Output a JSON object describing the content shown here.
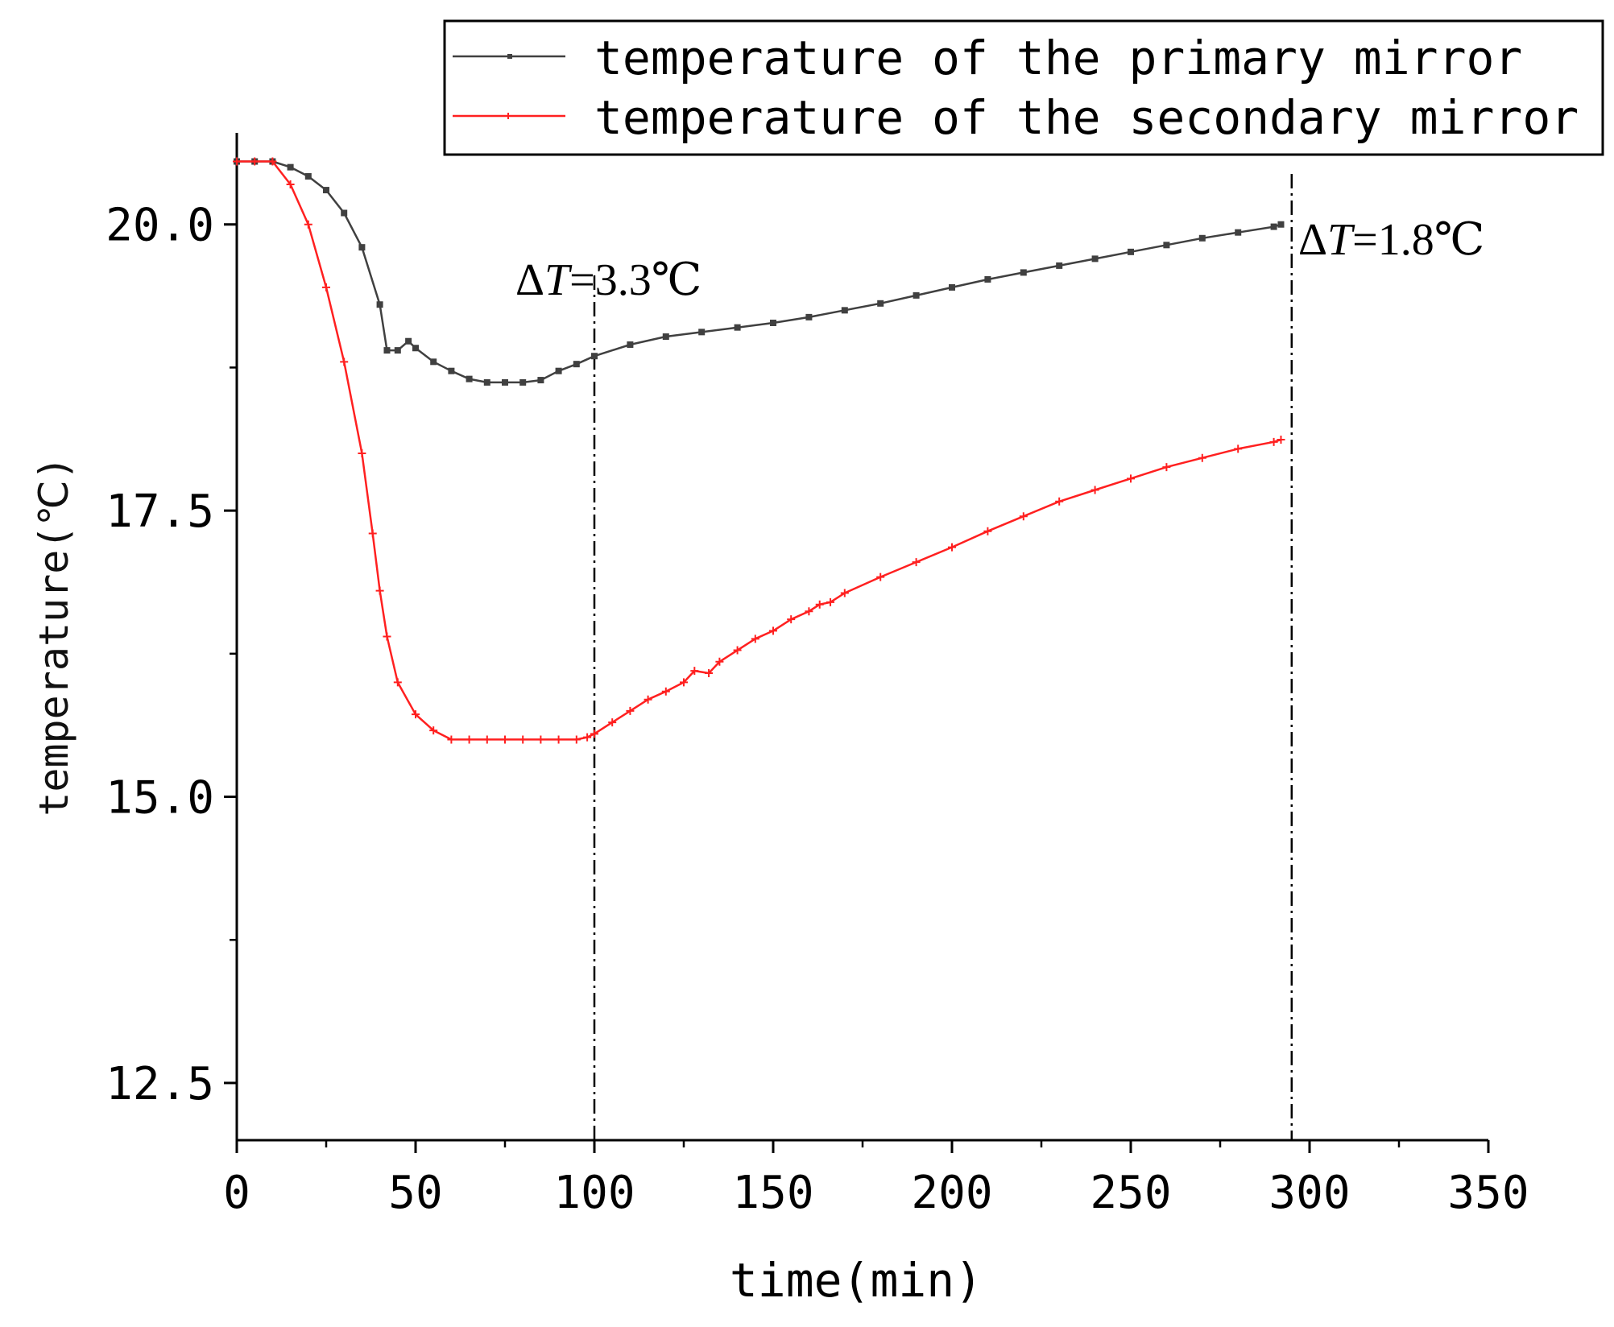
{
  "chart_data": {
    "type": "line",
    "title": "",
    "xlabel": "time(min)",
    "ylabel": "temperature(℃)",
    "xlim": [
      0,
      350
    ],
    "ylim": [
      12.0,
      20.8
    ],
    "xticks": [
      0,
      50,
      100,
      150,
      200,
      250,
      300,
      350
    ],
    "yticks": [
      12.5,
      15.0,
      17.5,
      20.0
    ],
    "xtick_labels": [
      "0",
      "50",
      "100",
      "150",
      "200",
      "250",
      "300",
      "350"
    ],
    "ytick_labels": [
      "12.5",
      "15.0",
      "17.5",
      "20.0"
    ],
    "grid": false,
    "legend_position": "top-right",
    "series": [
      {
        "name": "temperature of the primary mirror",
        "color": "#404040",
        "x": [
          0,
          5,
          10,
          15,
          20,
          25,
          30,
          35,
          40,
          42,
          45,
          48,
          50,
          55,
          60,
          65,
          70,
          75,
          80,
          85,
          90,
          95,
          100,
          110,
          120,
          130,
          140,
          150,
          160,
          170,
          180,
          190,
          200,
          210,
          220,
          230,
          240,
          250,
          260,
          270,
          280,
          290,
          292
        ],
        "y": [
          20.55,
          20.55,
          20.55,
          20.5,
          20.42,
          20.3,
          20.1,
          19.8,
          19.3,
          18.9,
          18.9,
          18.98,
          18.92,
          18.8,
          18.72,
          18.65,
          18.62,
          18.62,
          18.62,
          18.64,
          18.72,
          18.78,
          18.85,
          18.95,
          19.02,
          19.06,
          19.1,
          19.14,
          19.19,
          19.25,
          19.31,
          19.38,
          19.45,
          19.52,
          19.58,
          19.64,
          19.7,
          19.76,
          19.82,
          19.88,
          19.93,
          19.98,
          20.0
        ]
      },
      {
        "name": "temperature of the secondary mirror",
        "color": "#ff2020",
        "x": [
          0,
          5,
          10,
          15,
          20,
          25,
          30,
          35,
          38,
          40,
          42,
          45,
          50,
          55,
          60,
          65,
          70,
          75,
          80,
          85,
          90,
          95,
          98,
          100,
          105,
          110,
          115,
          120,
          125,
          128,
          132,
          135,
          140,
          145,
          150,
          155,
          160,
          163,
          166,
          170,
          180,
          190,
          200,
          210,
          220,
          230,
          240,
          250,
          260,
          270,
          280,
          290,
          292
        ],
        "y": [
          20.55,
          20.55,
          20.55,
          20.35,
          20.0,
          19.45,
          18.8,
          18.0,
          17.3,
          16.8,
          16.4,
          16.0,
          15.72,
          15.58,
          15.5,
          15.5,
          15.5,
          15.5,
          15.5,
          15.5,
          15.5,
          15.5,
          15.52,
          15.55,
          15.65,
          15.75,
          15.85,
          15.92,
          16.0,
          16.1,
          16.08,
          16.18,
          16.28,
          16.38,
          16.45,
          16.55,
          16.62,
          16.68,
          16.7,
          16.78,
          16.92,
          17.05,
          17.18,
          17.32,
          17.45,
          17.58,
          17.68,
          17.78,
          17.88,
          17.96,
          18.04,
          18.1,
          18.12
        ]
      }
    ],
    "reference_lines": [
      {
        "x": 100,
        "style": "dash-dot",
        "label_prefix": "Δ",
        "label_var": "T",
        "label_value": "=3.3℃"
      },
      {
        "x": 295,
        "style": "dash-dot",
        "label_prefix": "Δ",
        "label_var": "T",
        "label_value": "=1.8℃"
      }
    ]
  }
}
